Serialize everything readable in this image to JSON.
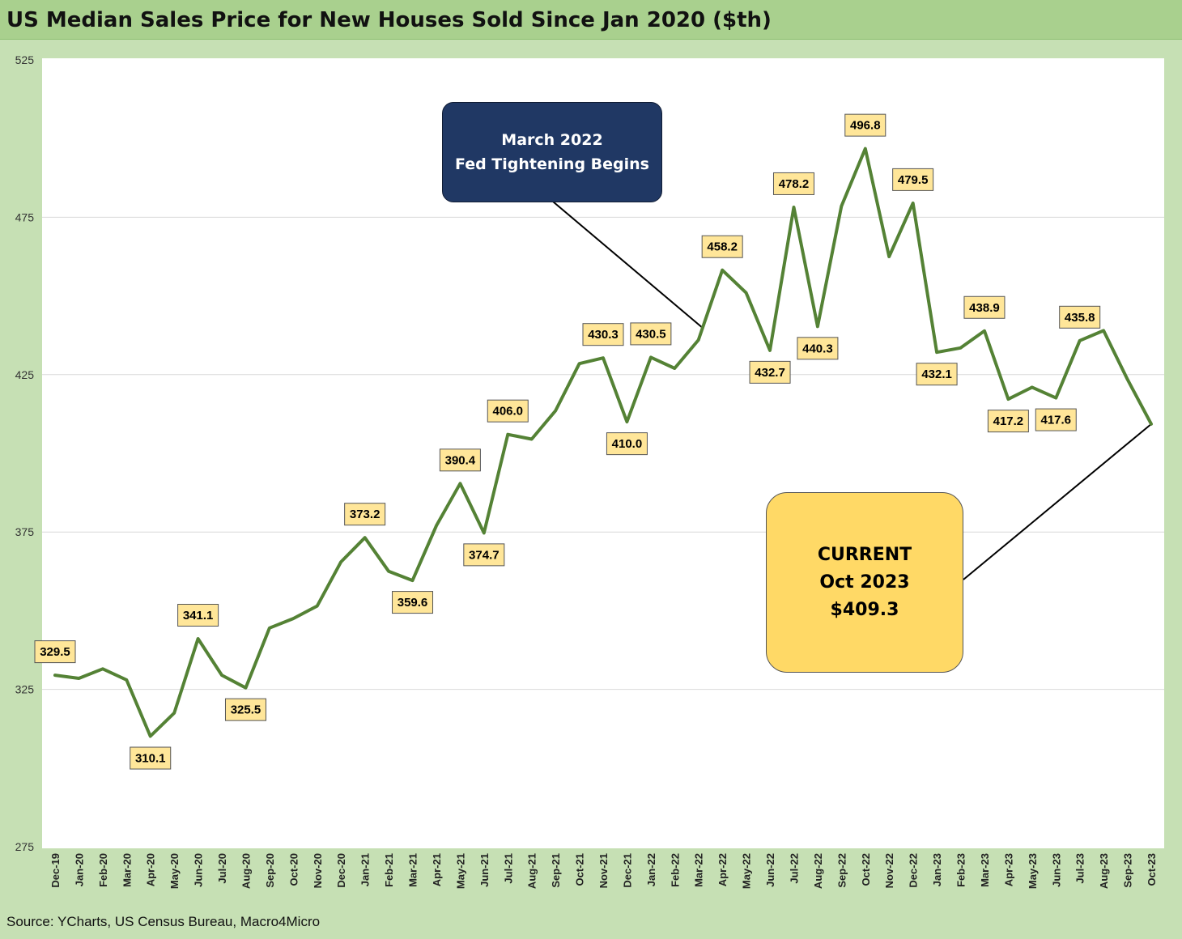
{
  "title": "US Median Sales Price for New Houses Sold Since Jan 2020 ($th)",
  "source": "Source: YCharts, US Census Bureau, Macro4Micro",
  "colors": {
    "background": "#c6e0b4",
    "title_bar": "#a9d08e",
    "line": "#548235",
    "label_fill": "#ffe699",
    "fed_box": "#203864",
    "current_box": "#ffd966"
  },
  "callouts": {
    "fed": {
      "line1": "March 2022",
      "line2": "Fed Tightening Begins"
    },
    "current": {
      "line1": "CURRENT",
      "line2": "Oct 2023",
      "line3": "$409.3"
    }
  },
  "chart_data": {
    "type": "line",
    "title": "US Median Sales Price for New Houses Sold Since Jan 2020 ($th)",
    "xlabel": "",
    "ylabel": "",
    "ylim": [
      275,
      525
    ],
    "yticks": [
      275,
      325,
      375,
      425,
      475,
      525
    ],
    "grid": true,
    "categories": [
      "Dec-19",
      "Jan-20",
      "Feb-20",
      "Mar-20",
      "Apr-20",
      "May-20",
      "Jun-20",
      "Jul-20",
      "Aug-20",
      "Sep-20",
      "Oct-20",
      "Nov-20",
      "Dec-20",
      "Jan-21",
      "Feb-21",
      "Mar-21",
      "Apr-21",
      "May-21",
      "Jun-21",
      "Jul-21",
      "Aug-21",
      "Sep-21",
      "Oct-21",
      "Nov-21",
      "Dec-21",
      "Jan-22",
      "Feb-22",
      "Mar-22",
      "Apr-22",
      "May-22",
      "Jun-22",
      "Jul-22",
      "Aug-22",
      "Sep-22",
      "Oct-22",
      "Nov-22",
      "Dec-22",
      "Jan-23",
      "Feb-23",
      "Mar-23",
      "Apr-23",
      "May-23",
      "Jun-23",
      "Jul-23",
      "Aug-23",
      "Sep-23",
      "Oct-23"
    ],
    "series": [
      {
        "values": [
          329.5,
          328.5,
          331.5,
          328.0,
          310.1,
          317.5,
          341.1,
          329.5,
          325.5,
          344.5,
          347.5,
          351.5,
          365.5,
          373.2,
          362.5,
          359.6,
          377.0,
          390.4,
          374.7,
          406.0,
          404.5,
          413.5,
          428.5,
          430.3,
          410.0,
          430.5,
          427.0,
          436.0,
          458.2,
          451.0,
          432.7,
          478.2,
          440.3,
          478.5,
          496.8,
          462.5,
          479.5,
          432.1,
          433.5,
          438.9,
          417.2,
          421.0,
          417.6,
          435.8,
          439.0,
          423.5,
          409.3
        ]
      }
    ],
    "data_labels": [
      {
        "index": 0,
        "text": "329.5",
        "pos": "above"
      },
      {
        "index": 4,
        "text": "310.1",
        "pos": "below"
      },
      {
        "index": 6,
        "text": "341.1",
        "pos": "above"
      },
      {
        "index": 8,
        "text": "325.5",
        "pos": "below"
      },
      {
        "index": 13,
        "text": "373.2",
        "pos": "above"
      },
      {
        "index": 15,
        "text": "359.6",
        "pos": "below"
      },
      {
        "index": 17,
        "text": "390.4",
        "pos": "above"
      },
      {
        "index": 18,
        "text": "374.7",
        "pos": "below"
      },
      {
        "index": 19,
        "text": "406.0",
        "pos": "above"
      },
      {
        "index": 23,
        "text": "430.3",
        "pos": "above"
      },
      {
        "index": 24,
        "text": "410.0",
        "pos": "below"
      },
      {
        "index": 25,
        "text": "430.5",
        "pos": "above"
      },
      {
        "index": 28,
        "text": "458.2",
        "pos": "above"
      },
      {
        "index": 30,
        "text": "432.7",
        "pos": "below"
      },
      {
        "index": 31,
        "text": "478.2",
        "pos": "above"
      },
      {
        "index": 32,
        "text": "440.3",
        "pos": "below"
      },
      {
        "index": 34,
        "text": "496.8",
        "pos": "above"
      },
      {
        "index": 36,
        "text": "479.5",
        "pos": "above"
      },
      {
        "index": 37,
        "text": "432.1",
        "pos": "below"
      },
      {
        "index": 39,
        "text": "438.9",
        "pos": "above"
      },
      {
        "index": 40,
        "text": "417.2",
        "pos": "below"
      },
      {
        "index": 42,
        "text": "417.6",
        "pos": "below"
      },
      {
        "index": 43,
        "text": "435.8",
        "pos": "above"
      }
    ]
  }
}
